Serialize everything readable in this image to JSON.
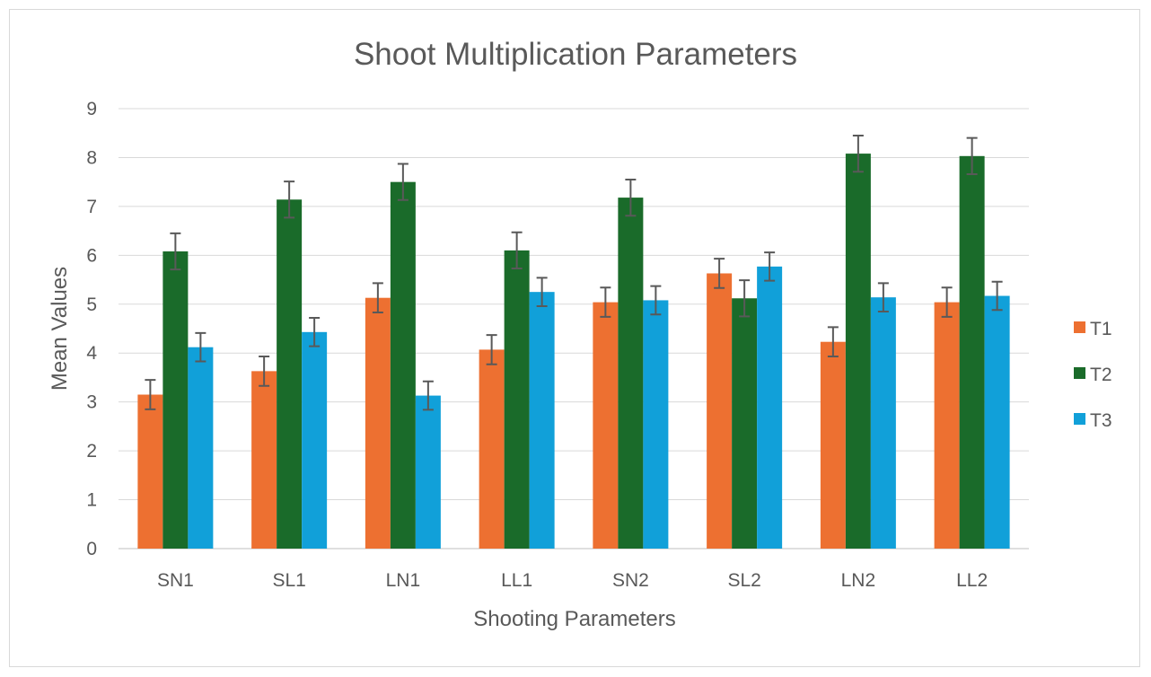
{
  "chart_data": {
    "type": "bar",
    "title": "Shoot Multiplication Parameters",
    "xlabel": "Shooting Parameters",
    "ylabel": "Mean Values",
    "ylim": [
      0,
      9
    ],
    "yticks": [
      0,
      1,
      2,
      3,
      4,
      5,
      6,
      7,
      8,
      9
    ],
    "grid": true,
    "legend_position": "right",
    "categories": [
      "SN1",
      "SL1",
      "LN1",
      "LL1",
      "SN2",
      "SL2",
      "LN2",
      "LL2"
    ],
    "series": [
      {
        "name": "T1",
        "color": "#ed7031",
        "values": [
          3.15,
          3.63,
          5.13,
          4.07,
          5.04,
          5.63,
          4.23,
          5.04
        ],
        "errors": [
          0.3,
          0.3,
          0.3,
          0.3,
          0.3,
          0.3,
          0.3,
          0.3
        ]
      },
      {
        "name": "T2",
        "color": "#1a6b2a",
        "values": [
          6.08,
          7.14,
          7.5,
          6.1,
          7.18,
          5.12,
          8.08,
          8.03
        ],
        "errors": [
          0.37,
          0.37,
          0.37,
          0.37,
          0.37,
          0.37,
          0.37,
          0.37
        ]
      },
      {
        "name": "T3",
        "color": "#11a0d9",
        "values": [
          4.12,
          4.43,
          3.13,
          5.25,
          5.08,
          5.77,
          5.14,
          5.17
        ],
        "errors": [
          0.29,
          0.29,
          0.29,
          0.29,
          0.29,
          0.29,
          0.29,
          0.29
        ]
      }
    ],
    "error_bar_color": "#595959",
    "grid_color": "#d9d9d9",
    "text_color": "#595959"
  }
}
